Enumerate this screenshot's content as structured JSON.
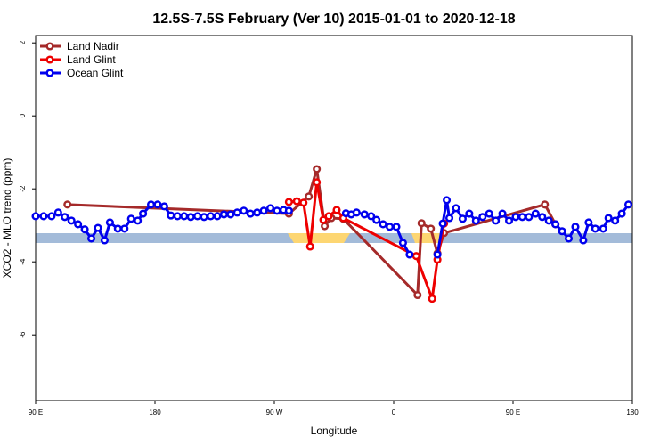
{
  "chart_data": {
    "type": "line",
    "title": "12.5S-7.5S February (Ver 10)   2015-01-01 to 2020-12-18",
    "x_label": "Longitude",
    "y_label": "XCO2 - MLO trend (ppm)",
    "xlim": [
      90,
      540
    ],
    "ylim": [
      -7.8,
      2.2
    ],
    "xticks": [
      {
        "value": 90,
        "label": "90 E"
      },
      {
        "value": 180,
        "label": "180"
      },
      {
        "value": 270,
        "label": "90 W"
      },
      {
        "value": 360,
        "label": "0"
      },
      {
        "value": 450,
        "label": "90 E"
      },
      {
        "value": 540,
        "label": "180"
      }
    ],
    "yticks": [
      -6,
      -4,
      -2,
      0,
      2
    ],
    "legend": "top-left",
    "series": [
      {
        "name": "Land Nadir",
        "color": "#a52a2a",
        "x": [
          114,
          281,
          296,
          302,
          308,
          313,
          322,
          378,
          381,
          388,
          393,
          398,
          474,
          482
        ],
        "values": [
          -2.43,
          -2.68,
          -2.21,
          -1.46,
          -3.02,
          -2.8,
          -2.82,
          -4.91,
          -2.94,
          -3.09,
          -3.77,
          -3.21,
          -2.43,
          -2.97
        ]
      },
      {
        "name": "Land Glint",
        "color": "#ee0000",
        "x": [
          281,
          287,
          292,
          297,
          302,
          307,
          311,
          317,
          322,
          377,
          389,
          393,
          398
        ],
        "values": [
          -2.36,
          -2.34,
          -2.38,
          -3.58,
          -1.82,
          -2.85,
          -2.75,
          -2.58,
          -2.8,
          -3.84,
          -5.01,
          -3.94,
          -2.95
        ]
      },
      {
        "name": "Ocean Glint",
        "color": "#0000ee",
        "x": [
          90,
          96,
          102,
          107,
          112,
          117,
          122,
          127,
          132,
          137,
          142,
          146,
          152,
          157,
          162,
          167,
          171,
          177,
          182,
          187,
          192,
          197,
          202,
          207,
          212,
          217,
          222,
          227,
          232,
          237,
          242,
          247,
          252,
          257,
          262,
          267,
          272,
          277,
          281,
          302,
          324,
          328,
          332,
          338,
          343,
          347,
          352,
          357,
          362,
          367,
          372,
          383,
          393,
          397,
          400,
          402,
          407,
          412,
          417,
          422,
          427,
          432,
          437,
          442,
          447,
          452,
          457,
          462,
          467,
          472,
          477,
          482,
          487,
          492,
          497,
          503,
          507,
          512,
          518,
          522,
          527,
          532,
          537
        ],
        "values": [
          -2.75,
          -2.75,
          -2.75,
          -2.65,
          -2.77,
          -2.87,
          -2.97,
          -3.11,
          -3.36,
          -3.07,
          -3.41,
          -2.92,
          -3.09,
          -3.09,
          -2.82,
          -2.87,
          -2.68,
          -2.43,
          -2.43,
          -2.48,
          -2.73,
          -2.75,
          -2.75,
          -2.77,
          -2.75,
          -2.77,
          -2.75,
          -2.75,
          -2.7,
          -2.7,
          -2.65,
          -2.6,
          -2.68,
          -2.65,
          -2.6,
          -2.53,
          -2.6,
          -2.58,
          -2.6,
          null,
          -2.67,
          -2.7,
          -2.65,
          -2.7,
          -2.75,
          -2.85,
          -2.97,
          -3.04,
          -3.04,
          -3.48,
          -3.8,
          null,
          -3.8,
          -2.95,
          -2.31,
          -2.8,
          -2.53,
          -2.82,
          -2.68,
          -2.87,
          -2.77,
          -2.68,
          -2.87,
          -2.68,
          -2.87,
          -2.77,
          -2.77,
          -2.77,
          -2.68,
          -2.77,
          -2.87,
          -2.97,
          -3.16,
          -3.36,
          -3.04,
          -3.41,
          -2.92,
          -3.09,
          -3.09,
          -2.8,
          -2.87,
          -2.68,
          -2.43
        ]
      }
    ]
  }
}
